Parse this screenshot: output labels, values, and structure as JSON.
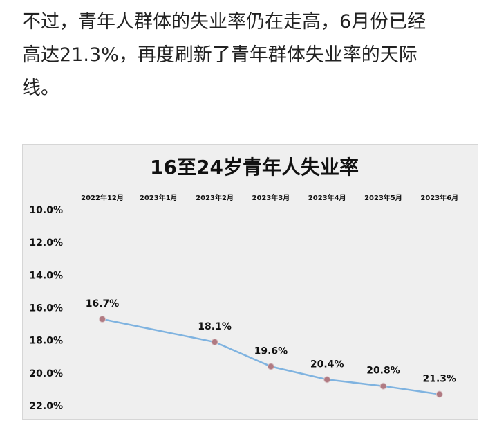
{
  "article": {
    "text": "不过，青年人群体的失业率仍在走高，6月份已经\n高达21.3%，再度刷新了青年群体失业率的天际\n线。"
  },
  "colors": {
    "line": "#7fb3e0",
    "marker": "#b07a82",
    "background": "#efefef"
  },
  "chart_data": {
    "type": "line",
    "title": "16至24岁青年人失业率",
    "xlabel": "",
    "ylabel": "",
    "categories": [
      "2022年12月",
      "2023年1月",
      "2023年2月",
      "2023年3月",
      "2023年4月",
      "2023年5月",
      "2023年6月"
    ],
    "x_axis_position": "top",
    "y_axis_inverted": true,
    "ylim": [
      10,
      22
    ],
    "y_ticks": [
      10,
      12,
      14,
      16,
      18,
      20,
      22
    ],
    "y_tick_labels": [
      "10.0%",
      "12.0%",
      "14.0%",
      "16.0%",
      "18.0%",
      "20.0%",
      "22.0%"
    ],
    "grid": false,
    "legend": "none",
    "points": [
      {
        "x": "2022年12月",
        "y": 16.7,
        "label": "16.7%"
      },
      {
        "x": "2023年2月",
        "y": 18.1,
        "label": "18.1%"
      },
      {
        "x": "2023年3月",
        "y": 19.6,
        "label": "19.6%"
      },
      {
        "x": "2023年4月",
        "y": 20.4,
        "label": "20.4%"
      },
      {
        "x": "2023年5月",
        "y": 20.8,
        "label": "20.8%"
      },
      {
        "x": "2023年6月",
        "y": 21.3,
        "label": "21.3%"
      }
    ]
  }
}
